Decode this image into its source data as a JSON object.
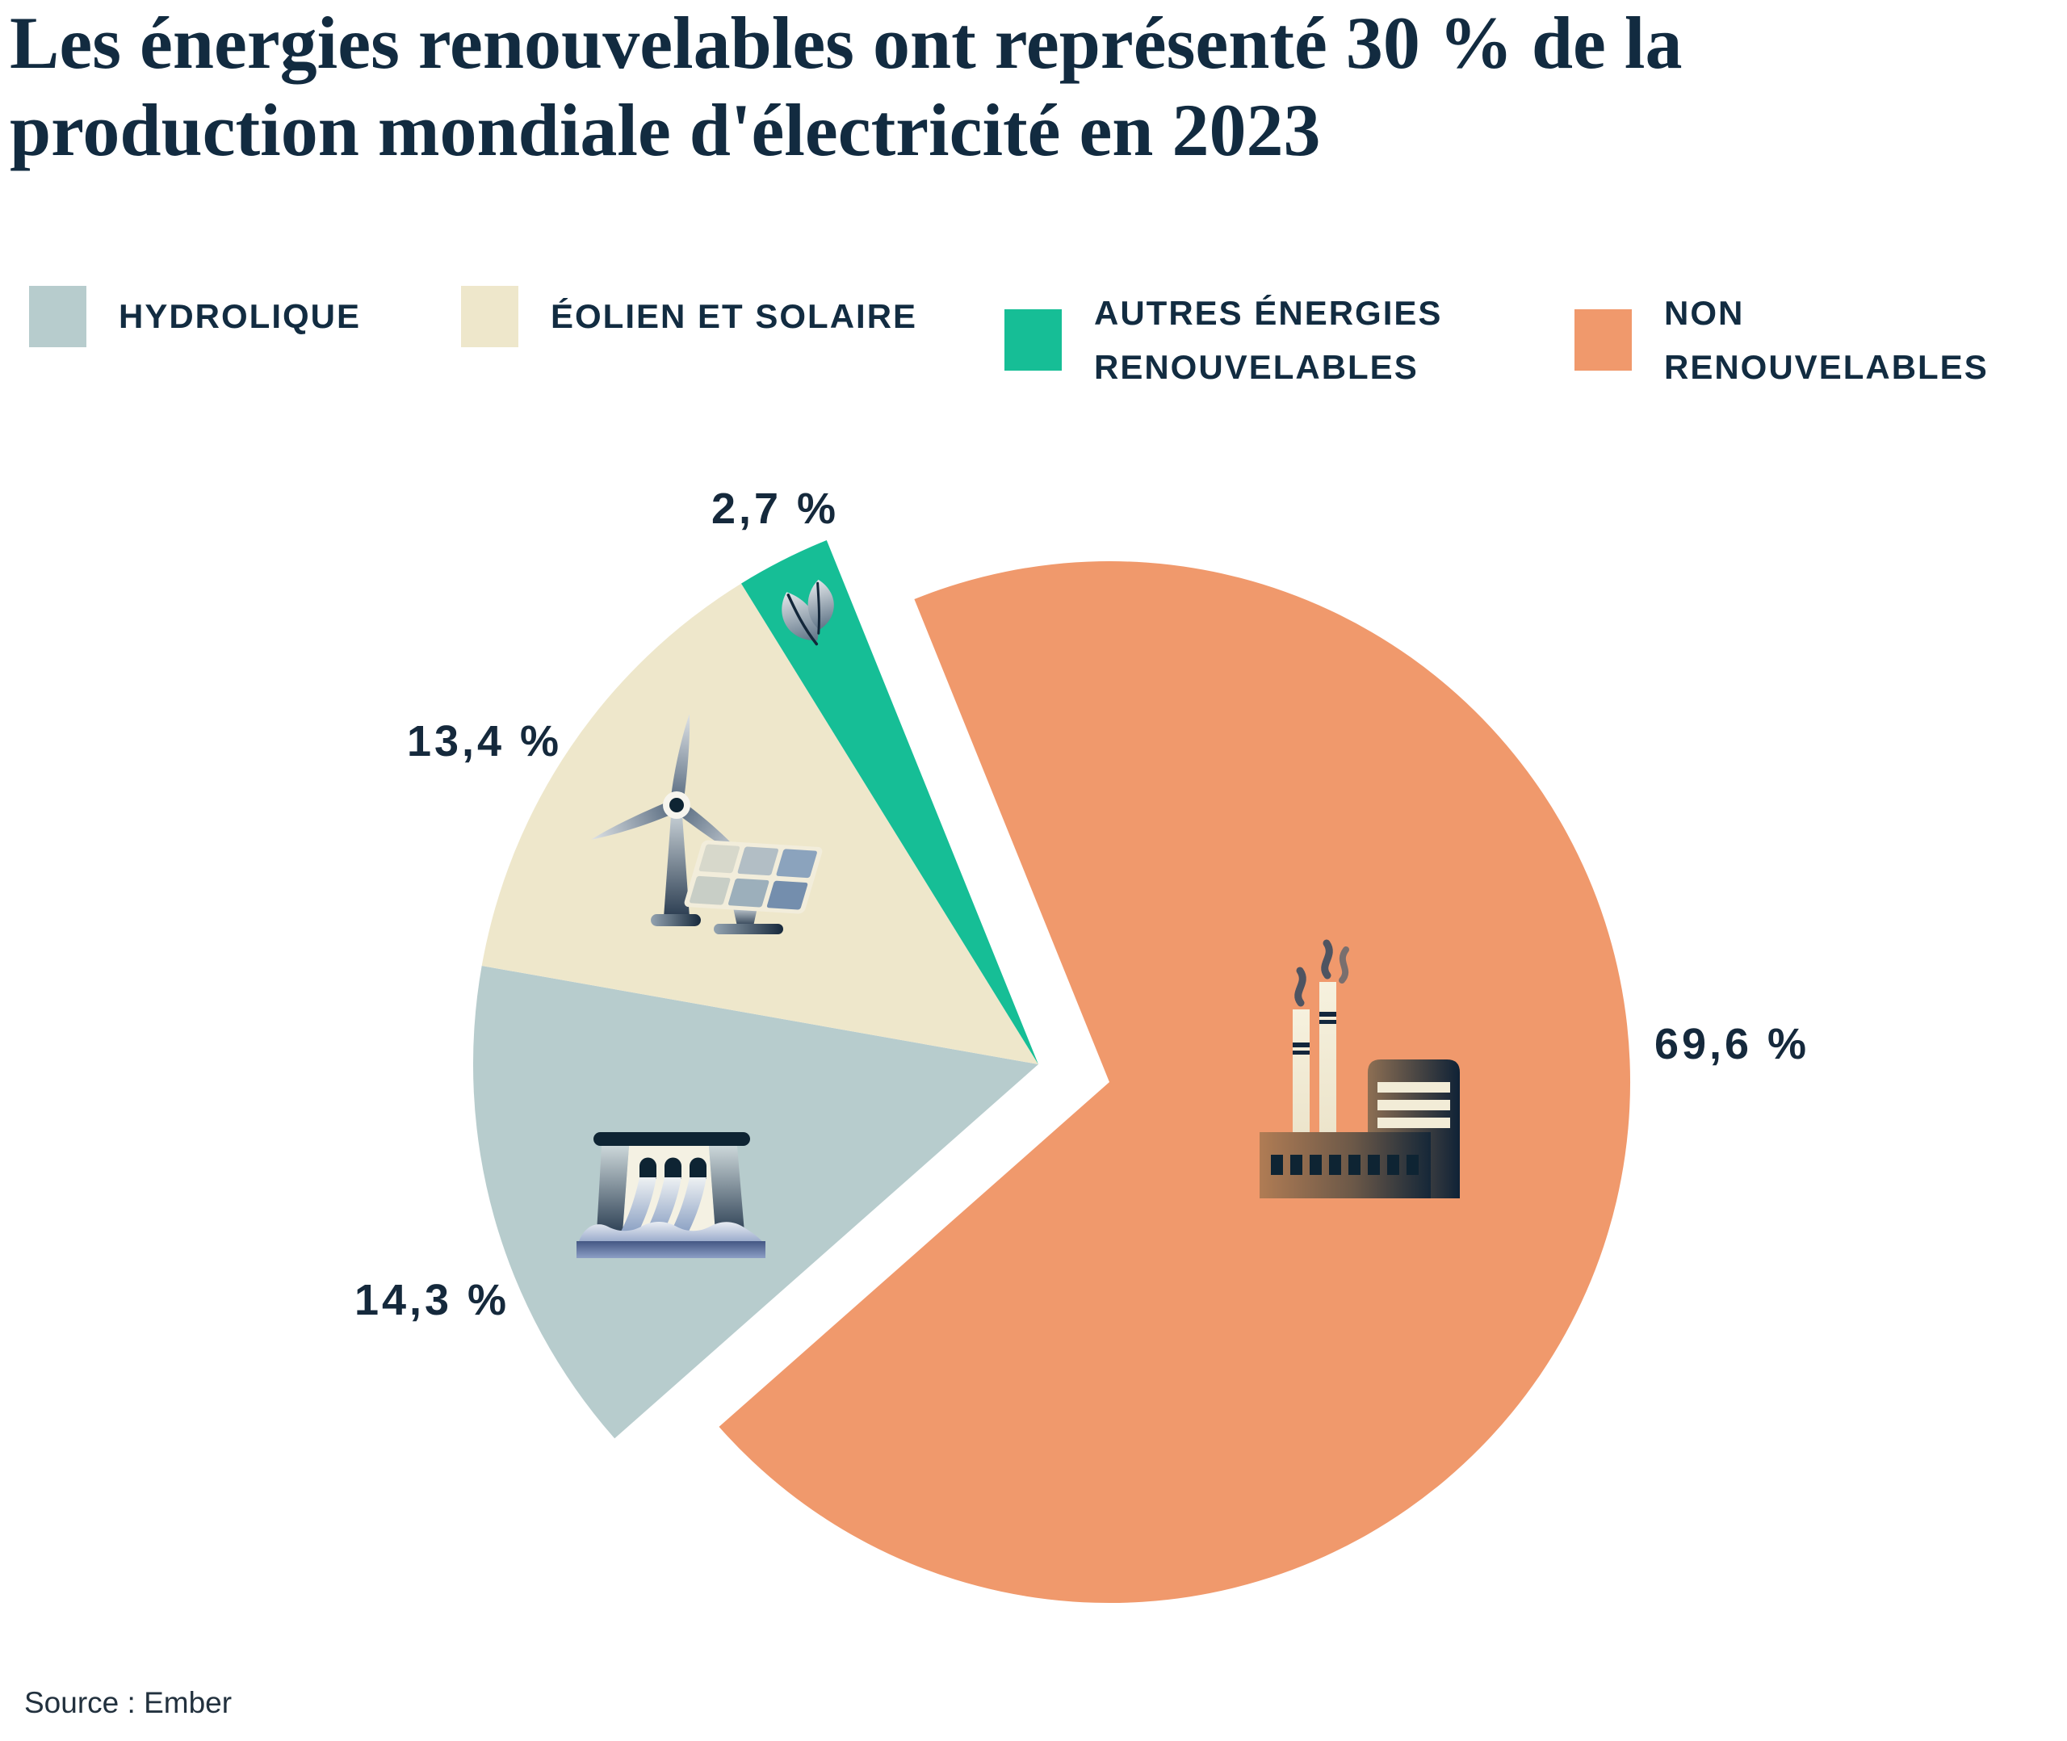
{
  "title": {
    "line1": "Les énergies renouvelables ont représenté 30 % de la",
    "line2": "production mondiale d'électricité en 2023"
  },
  "legend": [
    {
      "label": "HYDROLIQUE",
      "color": "#b7cccd"
    },
    {
      "label": "ÉOLIEN ET SOLAIRE",
      "color": "#eee7cb"
    },
    {
      "label": "AUTRES ÉNERGIES\nRENOUVELABLES",
      "color": "#16be96"
    },
    {
      "label": "NON RENOUVELABLES",
      "color": "#f0996c"
    }
  ],
  "chart_data": {
    "type": "pie",
    "title": "Les énergies renouvelables ont représenté 30 % de la production mondiale d'électricité en 2023",
    "units": "%",
    "legend_position": "top",
    "layout": "exploded pie: renewables group (hydro, wind+solar, other renewables) offset up-left, non-renewables offset down-right",
    "slices": [
      {
        "label": "Hydrolique",
        "value": 14.3,
        "display": "14,3 %",
        "color": "#b7cccd",
        "icon": "hydro-dam-icon"
      },
      {
        "label": "Éolien et solaire",
        "value": 13.4,
        "display": "13,4 %",
        "color": "#eee7cb",
        "icon": "wind-turbine-solar-panel-icon"
      },
      {
        "label": "Autres énergies renouvelables",
        "value": 2.7,
        "display": "2,7 %",
        "color": "#16be96",
        "icon": "leaf-icon"
      },
      {
        "label": "Non renouvelables",
        "value": 69.6,
        "display": "69,6 %",
        "color": "#f0996c",
        "icon": "factory-icon"
      }
    ]
  },
  "source": "Source : Ember"
}
